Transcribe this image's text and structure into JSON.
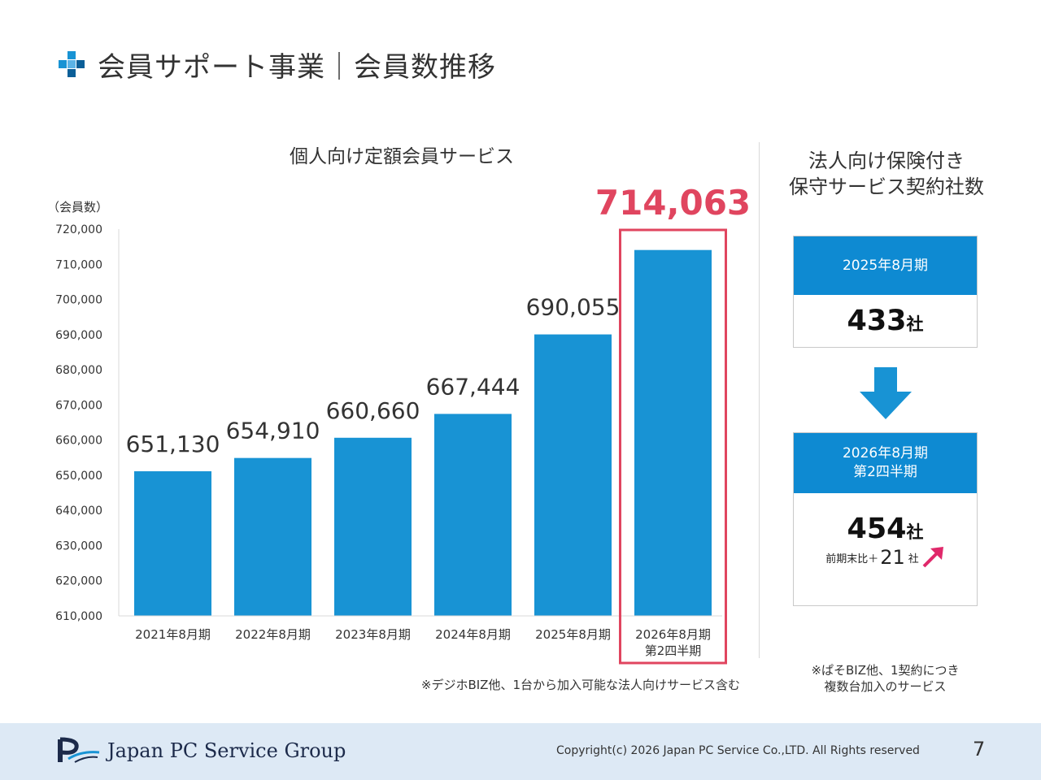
{
  "header": {
    "title": "会員サポート事業｜会員数推移",
    "icon": "plus-cross-icon"
  },
  "chart_data": {
    "type": "bar",
    "title": "個人向け定額会員サービス",
    "ylabel": "（会員数）",
    "ylim": [
      610000,
      720000
    ],
    "yticks": [
      610000,
      620000,
      630000,
      640000,
      650000,
      660000,
      670000,
      680000,
      690000,
      700000,
      710000,
      720000
    ],
    "ytick_labels": [
      "610,000",
      "620,000",
      "630,000",
      "640,000",
      "650,000",
      "660,000",
      "670,000",
      "680,000",
      "690,000",
      "700,000",
      "710,000",
      "720,000"
    ],
    "categories": [
      "2021年8月期",
      "2022年8月期",
      "2023年8月期",
      "2024年8月期",
      "2025年8月期",
      "2026年8月期\n第2四半期"
    ],
    "values": [
      651130,
      654910,
      660660,
      667444,
      690055,
      714063
    ],
    "value_labels": [
      "651,130",
      "654,910",
      "660,660",
      "667,444",
      "690,055",
      "714,063"
    ],
    "highlight_index": 5,
    "bar_color": "#1893d4",
    "highlight_color": "#e0455f",
    "grid": false,
    "note": "※デジホBIZ他、1台から加入可能な法人向けサービス含む"
  },
  "corporate": {
    "title": "法人向け保険付き\n保守サービス契約社数",
    "card1": {
      "period": "2025年8月期",
      "value": "433",
      "unit": "社"
    },
    "card2": {
      "period": "2026年8月期\n第2四半期",
      "value": "454",
      "unit": "社",
      "delta_prefix": "前期末比＋",
      "delta_value": "21",
      "delta_unit": "社"
    },
    "note": "※ぱそBIZ他、1契約につき\n複数台加入のサービス",
    "accent_color": "#0e8ad2",
    "arrow_color": "#e0286a"
  },
  "footer": {
    "company": "Japan PC Service Group",
    "copyright": "Copyright(c) 2026 Japan PC Service Co.,LTD. All Rights reserved",
    "page": "7"
  }
}
